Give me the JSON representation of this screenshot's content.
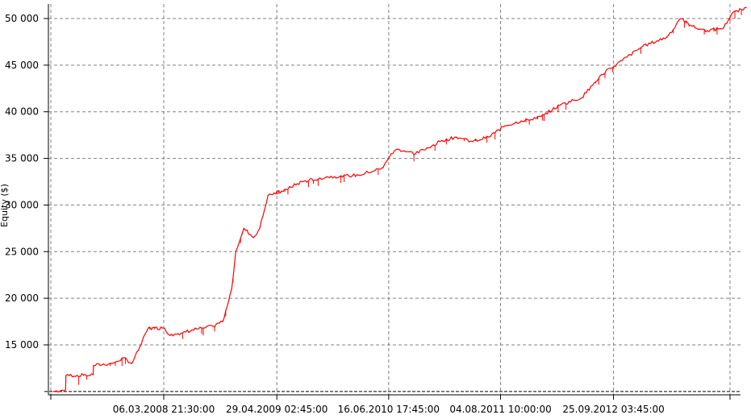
{
  "chart_data": {
    "type": "line",
    "title": "",
    "xlabel": "",
    "ylabel": "Equity ($)",
    "ylim": [
      10000,
      51500
    ],
    "grid": true,
    "y_ticks": [
      "15 000",
      "20 000",
      "25 000",
      "30 000",
      "35 000",
      "40 000",
      "45 000",
      "50 000"
    ],
    "y_tick_values": [
      15000,
      20000,
      25000,
      30000,
      35000,
      40000,
      45000,
      50000
    ],
    "x_ticks": [
      "06.03.2008 21:30:00",
      "29.04.2009 02:45:00",
      "16.06.2010 17:45:00",
      "04.08.2011 10:00:00",
      "25.09.2012 03:45:00"
    ],
    "x_tick_dates": [
      "2008-03-06T21:30",
      "2009-04-29T02:45",
      "2010-06-16T17:45",
      "2011-08-04T10:00",
      "2012-09-25T03:45"
    ],
    "baseline": 10000,
    "colors": {
      "line": "#ff0000",
      "highs": "#008000",
      "grid": "#808080"
    },
    "series": [
      {
        "x": [
          "2007-01-24",
          "2007-03-10",
          "2007-03-11",
          "2007-06-20",
          "2007-06-21",
          "2007-08-28",
          "2007-10-11",
          "2007-11-10",
          "2007-12-10",
          "2008-01-09",
          "2008-03-09",
          "2008-03-30",
          "2008-07-07",
          "2008-09-05",
          "2008-10-11",
          "2008-11-13",
          "2008-11-28",
          "2008-12-28",
          "2009-02-02",
          "2009-02-25",
          "2009-03-27",
          "2009-05-17",
          "2009-07-31",
          "2009-10-29",
          "2010-02-26",
          "2010-05-27",
          "2010-06-26",
          "2010-07-20",
          "2010-09-24",
          "2010-12-23",
          "2011-02-21",
          "2011-04-22",
          "2011-06-21",
          "2011-08-20",
          "2011-10-19",
          "2012-01-01",
          "2012-03-16",
          "2012-05-30",
          "2012-08-13",
          "2012-10-27",
          "2013-01-10",
          "2013-04-10",
          "2013-06-03",
          "2013-07-24",
          "2013-09-07",
          "2013-11-06",
          "2013-12-06",
          "2014-01-29"
        ],
        "y": [
          10000,
          10200,
          11700,
          11800,
          12800,
          13000,
          13600,
          13000,
          14800,
          16800,
          16800,
          16000,
          16700,
          17000,
          17500,
          21000,
          25000,
          27500,
          26500,
          27500,
          31000,
          31500,
          32500,
          33000,
          33200,
          34000,
          35500,
          36000,
          35500,
          36800,
          37300,
          36800,
          37300,
          38500,
          39000,
          39500,
          40800,
          41500,
          44000,
          45500,
          47000,
          48000,
          50000,
          49000,
          48700,
          49000,
          50500,
          51200
        ]
      }
    ]
  }
}
